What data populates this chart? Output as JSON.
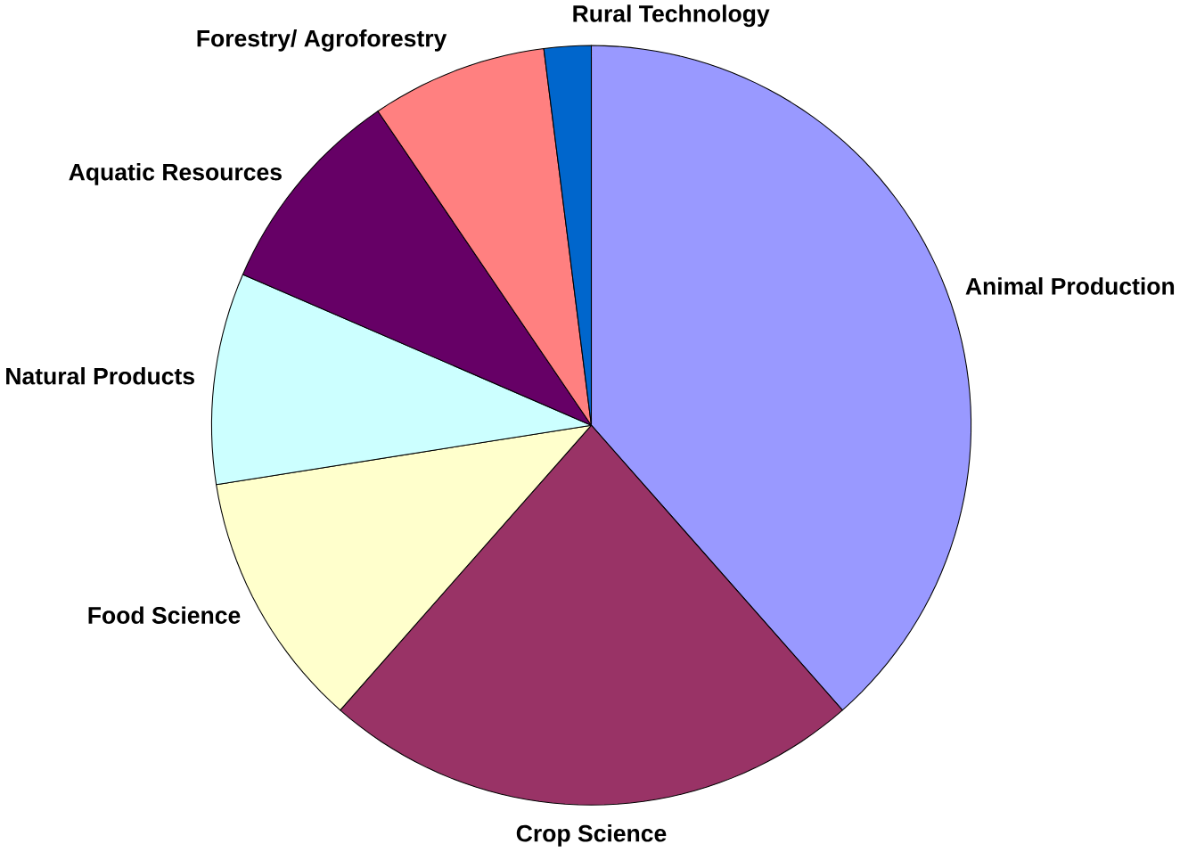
{
  "chart_data": {
    "type": "pie",
    "categories": [
      "Animal Production",
      "Crop Science",
      "Food Science",
      "Natural Products",
      "Aquatic Resources",
      "Forestry/ Agroforestry",
      "Rural Technology"
    ],
    "values": [
      38.5,
      23,
      11,
      9,
      9,
      7.5,
      2
    ],
    "colors": [
      "#9999ff",
      "#993366",
      "#ffffcc",
      "#ccffff",
      "#660066",
      "#ff8080",
      "#0066cc"
    ]
  }
}
